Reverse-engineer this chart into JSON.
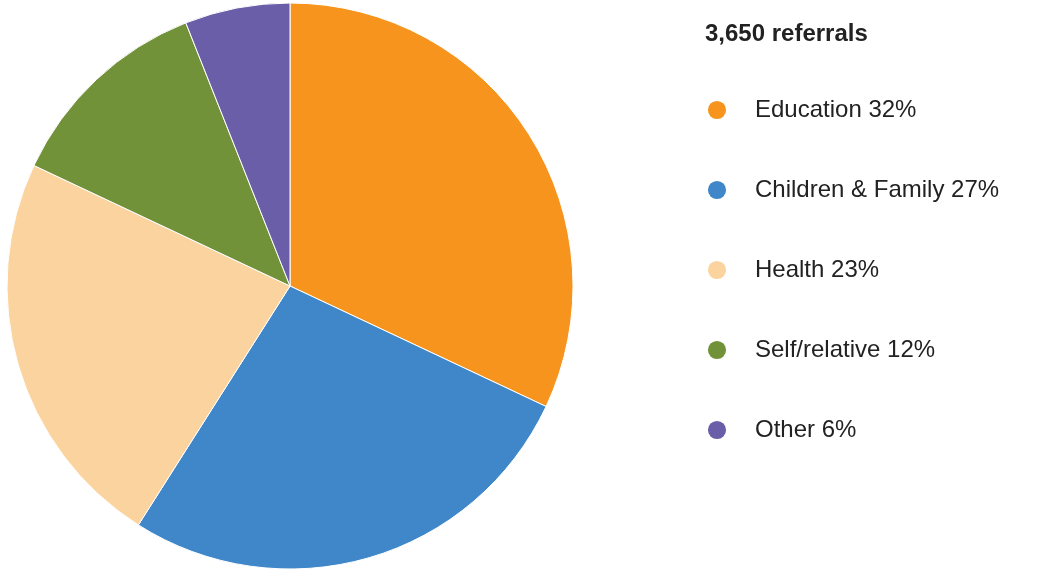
{
  "chart_data": {
    "type": "pie",
    "legend_title": "3,650 referrals",
    "categories": [
      "Education 32%",
      "Children & Family 27%",
      "Health 23%",
      "Self/relative 12%",
      "Other 6%"
    ],
    "values": [
      32,
      27,
      23,
      12,
      6
    ],
    "colors": [
      "#f7941d",
      "#3f87c8",
      "#fbd39e",
      "#72923a",
      "#6b5ea8"
    ],
    "legend": "right"
  }
}
